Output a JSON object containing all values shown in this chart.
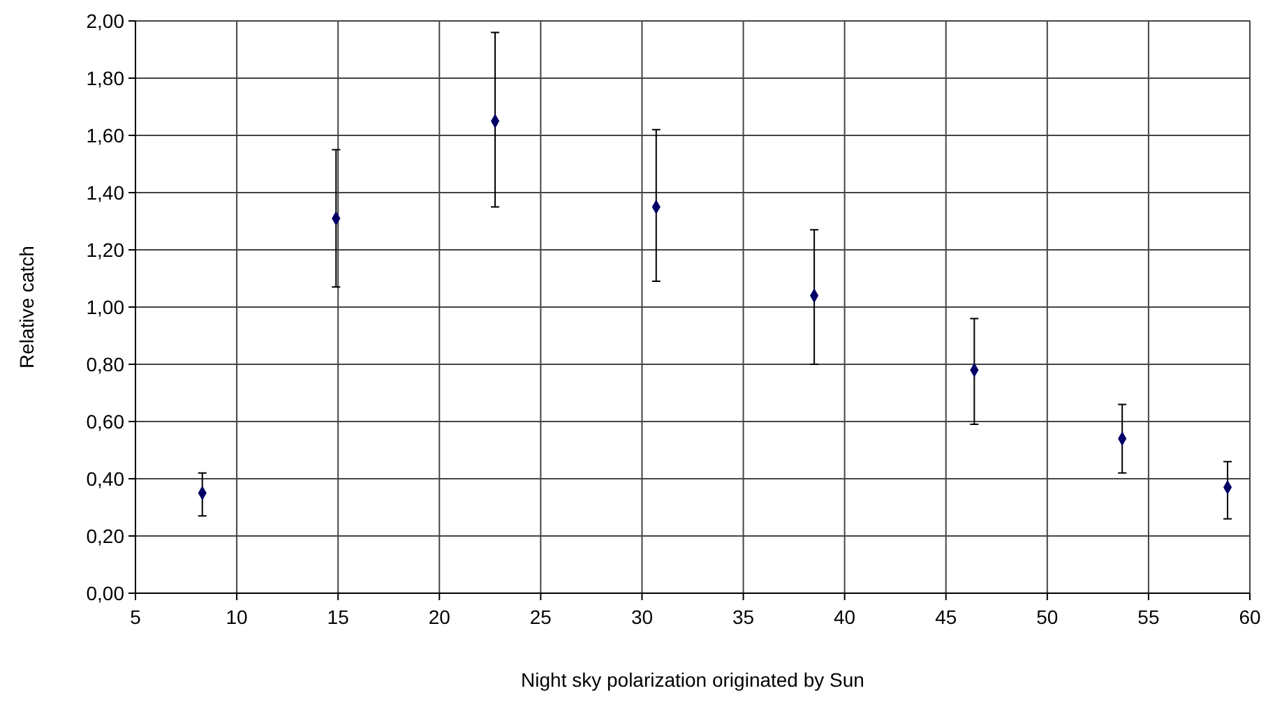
{
  "chart_data": {
    "type": "scatter",
    "xlabel": "Night sky polarization originated by Sun",
    "ylabel": "Relative catch",
    "x": [
      8.3,
      14.9,
      22.75,
      30.7,
      38.5,
      46.4,
      53.7,
      58.9
    ],
    "values": [
      0.35,
      1.31,
      1.65,
      1.35,
      1.04,
      0.78,
      0.54,
      0.37
    ],
    "errors": [
      [
        0.27,
        0.42
      ],
      [
        1.07,
        1.55
      ],
      [
        1.35,
        1.96
      ],
      [
        1.09,
        1.62
      ],
      [
        0.8,
        1.27
      ],
      [
        0.59,
        0.96
      ],
      [
        0.42,
        0.66
      ],
      [
        0.26,
        0.46
      ]
    ],
    "color": "#000066",
    "marker": "diamond",
    "grid": true,
    "xlim": [
      5,
      60
    ],
    "xticks": [
      5,
      10,
      15,
      20,
      25,
      30,
      35,
      40,
      45,
      50,
      55,
      60
    ],
    "ylim": [
      0,
      2
    ],
    "yticks": [
      {
        "value": 0,
        "label": "0,00"
      },
      {
        "value": 0.2,
        "label": "0,20"
      },
      {
        "value": 0.4,
        "label": "0,40"
      },
      {
        "value": 0.6,
        "label": "0,60"
      },
      {
        "value": 0.8,
        "label": "0,80"
      },
      {
        "value": 1,
        "label": "1,00"
      },
      {
        "value": 1.2,
        "label": "1,20"
      },
      {
        "value": 1.4,
        "label": "1,40"
      },
      {
        "value": 1.6,
        "label": "1,60"
      },
      {
        "value": 1.8,
        "label": "1,80"
      },
      {
        "value": 2,
        "label": "2,00"
      }
    ]
  }
}
